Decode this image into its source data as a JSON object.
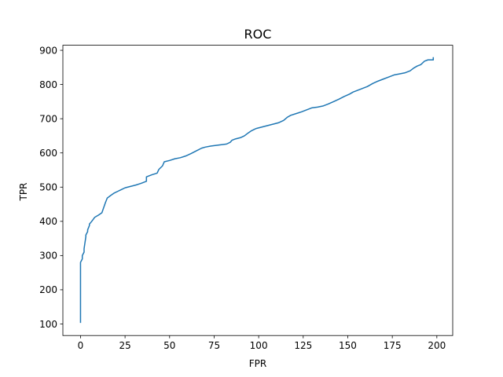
{
  "chart_data": {
    "type": "line",
    "title": "ROC",
    "xlabel": "FPR",
    "ylabel": "TPR",
    "xlim": [
      -9.9,
      208.9
    ],
    "ylim": [
      66.2,
      914.8
    ],
    "x_ticks": [
      0,
      25,
      50,
      75,
      100,
      125,
      150,
      175,
      200
    ],
    "y_ticks": [
      100,
      200,
      300,
      400,
      500,
      600,
      700,
      800,
      900
    ],
    "grid": false,
    "legend": "none",
    "line_color": "#1f77b4",
    "series": [
      {
        "x": [
          0,
          0,
          0,
          1,
          1,
          2,
          2,
          3,
          3,
          4,
          4,
          5,
          5,
          6,
          7,
          8,
          10,
          12,
          13,
          14,
          15,
          17,
          19,
          21,
          23,
          25,
          28,
          31,
          34,
          37,
          37,
          40,
          43,
          44,
          46,
          47,
          50,
          53,
          56,
          59,
          62,
          65,
          68,
          70,
          73,
          76,
          79,
          82,
          84,
          85,
          87,
          90,
          92,
          94,
          96,
          98,
          99,
          102,
          105,
          108,
          111,
          114,
          116,
          118,
          121,
          124,
          127,
          130,
          133,
          136,
          139,
          142,
          145,
          148,
          151,
          153,
          155,
          158,
          161,
          164,
          167,
          170,
          173,
          176,
          179,
          182,
          185,
          187,
          189,
          191,
          193,
          195,
          197,
          198,
          198
        ],
        "y": [
          103,
          272,
          280,
          290,
          300,
          310,
          320,
          355,
          360,
          370,
          375,
          388,
          392,
          398,
          405,
          412,
          418,
          425,
          440,
          455,
          468,
          476,
          483,
          488,
          493,
          498,
          502,
          506,
          511,
          517,
          530,
          536,
          541,
          552,
          562,
          574,
          578,
          583,
          586,
          591,
          598,
          606,
          614,
          617,
          620,
          622,
          624,
          626,
          631,
          637,
          641,
          645,
          650,
          658,
          665,
          670,
          672,
          676,
          680,
          684,
          688,
          695,
          704,
          710,
          715,
          720,
          726,
          732,
          734,
          737,
          743,
          750,
          757,
          765,
          772,
          778,
          782,
          788,
          794,
          803,
          810,
          816,
          822,
          828,
          831,
          834,
          840,
          848,
          854,
          858,
          868,
          872,
          872,
          872,
          880
        ]
      }
    ]
  }
}
